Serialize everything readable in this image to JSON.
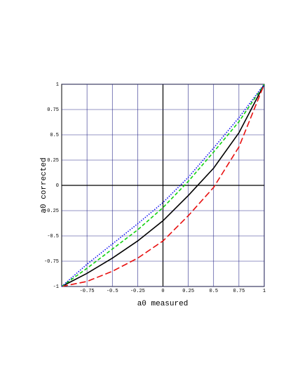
{
  "chart_data": {
    "type": "line",
    "x_label": "a0 measured",
    "y_label": "a0 corrected",
    "x": [
      -1,
      -0.75,
      -0.5,
      -0.25,
      0,
      0.25,
      0.5,
      0.75,
      1
    ],
    "series": [
      {
        "color": "#000000",
        "line_style": "solid",
        "values": [
          -1,
          -0.87,
          -0.72,
          -0.55,
          -0.35,
          -0.1,
          0.17,
          0.52,
          1
        ]
      },
      {
        "color": "#e81010",
        "line_style": "long-dash",
        "values": [
          -1,
          -0.95,
          -0.85,
          -0.72,
          -0.55,
          -0.3,
          -0.02,
          0.38,
          1
        ]
      },
      {
        "color": "#10d010",
        "line_style": "dash",
        "values": [
          -1,
          -0.82,
          -0.63,
          -0.44,
          -0.22,
          0.04,
          0.33,
          0.63,
          1
        ]
      },
      {
        "color": "#1010f0",
        "line_style": "dot",
        "values": [
          -1,
          -0.78,
          -0.58,
          -0.38,
          -0.17,
          0.08,
          0.37,
          0.67,
          1
        ]
      }
    ],
    "xlim": [
      -1,
      1
    ],
    "ylim": [
      -1,
      1
    ],
    "xticks": [
      -0.75,
      -0.5,
      -0.25,
      0,
      0.25,
      0.5,
      0.75,
      1
    ],
    "yticks": [
      -1,
      -0.75,
      -0.5,
      -0.25,
      0,
      0.25,
      0.5,
      0.75,
      1
    ],
    "grid": true
  }
}
